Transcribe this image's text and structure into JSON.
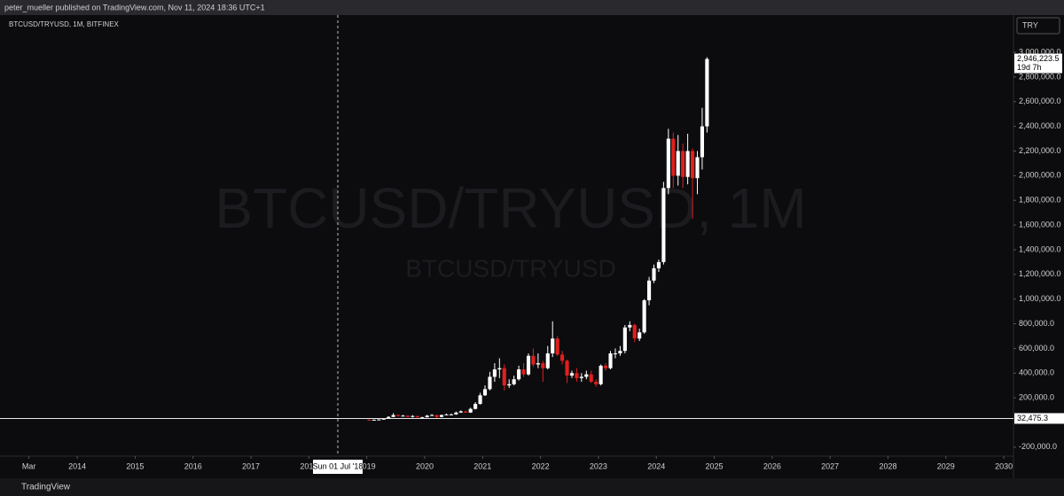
{
  "header": "peter_mueller published on TradingView.com, Nov 11, 2024 18:36 UTC+1",
  "footer": "TradingView",
  "chart_data": {
    "type": "candlestick",
    "symbol": "BTCUSD/TRYUSD, 1M, BITFINEX",
    "watermark": "BTCUSD/TRYUSD, 1M",
    "watermark_sub": "BTCUSD/TRYUSD",
    "currency_button": "TRY",
    "up_color": "#ffffff",
    "down_color": "#e0201d",
    "x": [
      "2019-01",
      "2019-02",
      "2019-03",
      "2019-04",
      "2019-05",
      "2019-06",
      "2019-07",
      "2019-08",
      "2019-09",
      "2019-10",
      "2019-11",
      "2019-12",
      "2020-01",
      "2020-02",
      "2020-03",
      "2020-04",
      "2020-05",
      "2020-06",
      "2020-07",
      "2020-08",
      "2020-09",
      "2020-10",
      "2020-11",
      "2020-12",
      "2021-01",
      "2021-02",
      "2021-03",
      "2021-04",
      "2021-05",
      "2021-06",
      "2021-07",
      "2021-08",
      "2021-09",
      "2021-10",
      "2021-11",
      "2021-12",
      "2022-01",
      "2022-02",
      "2022-03",
      "2022-04",
      "2022-05",
      "2022-06",
      "2022-07",
      "2022-08",
      "2022-09",
      "2022-10",
      "2022-11",
      "2022-12",
      "2023-01",
      "2023-02",
      "2023-03",
      "2023-04",
      "2023-05",
      "2023-06",
      "2023-07",
      "2023-08",
      "2023-09",
      "2023-10",
      "2023-11",
      "2023-12",
      "2024-01",
      "2024-02",
      "2024-03",
      "2024-04",
      "2024-05",
      "2024-06",
      "2024-07",
      "2024-08",
      "2024-09",
      "2024-10",
      "2024-11"
    ],
    "open": [
      22000,
      20000,
      22000,
      24000,
      30000,
      45000,
      60000,
      55000,
      55000,
      45000,
      52000,
      42000,
      42000,
      55000,
      60000,
      45000,
      60000,
      65000,
      65000,
      80000,
      90000,
      80000,
      110000,
      150000,
      220000,
      270000,
      370000,
      430000,
      440000,
      300000,
      310000,
      350000,
      430000,
      390000,
      540000,
      470000,
      480000,
      440000,
      560000,
      680000,
      550000,
      500000,
      380000,
      400000,
      360000,
      370000,
      390000,
      330000,
      310000,
      460000,
      440000,
      560000,
      560000,
      580000,
      770000,
      790000,
      680000,
      730000,
      990000,
      1150000,
      1250000,
      1300000,
      1900000,
      2300000,
      2000000,
      2200000,
      1990000,
      2200000,
      1980000,
      2150000,
      2400000
    ],
    "high": [
      25000,
      24000,
      26000,
      34000,
      50000,
      75000,
      65000,
      62000,
      58000,
      60000,
      55000,
      46000,
      62000,
      68000,
      62000,
      64000,
      72000,
      72000,
      88000,
      98000,
      95000,
      120000,
      165000,
      240000,
      300000,
      410000,
      480000,
      520000,
      470000,
      350000,
      380000,
      460000,
      480000,
      560000,
      600000,
      560000,
      500000,
      620000,
      820000,
      700000,
      580000,
      510000,
      420000,
      440000,
      400000,
      420000,
      420000,
      350000,
      470000,
      480000,
      580000,
      600000,
      620000,
      790000,
      820000,
      800000,
      760000,
      1000000,
      1180000,
      1280000,
      1320000,
      1950000,
      2380000,
      2350000,
      2330000,
      2260000,
      2340000,
      2220000,
      2200000,
      2550000,
      2960000
    ],
    "low": [
      18000,
      19000,
      21000,
      23000,
      29000,
      44000,
      48000,
      50000,
      42000,
      40000,
      40000,
      38000,
      40000,
      52000,
      35000,
      42000,
      58000,
      60000,
      62000,
      78000,
      78000,
      78000,
      105000,
      145000,
      215000,
      260000,
      330000,
      360000,
      260000,
      280000,
      300000,
      340000,
      370000,
      380000,
      450000,
      440000,
      330000,
      430000,
      530000,
      540000,
      470000,
      320000,
      360000,
      330000,
      330000,
      350000,
      320000,
      290000,
      300000,
      420000,
      430000,
      520000,
      540000,
      560000,
      740000,
      650000,
      660000,
      720000,
      950000,
      1130000,
      1220000,
      1280000,
      1850000,
      1900000,
      1920000,
      1900000,
      1930000,
      1650000,
      1850000,
      2050000,
      2350000
    ],
    "close": [
      20000,
      22000,
      24000,
      30000,
      45000,
      60000,
      55000,
      55000,
      45000,
      52000,
      42000,
      42000,
      55000,
      60000,
      45000,
      60000,
      65000,
      65000,
      80000,
      90000,
      80000,
      110000,
      150000,
      220000,
      270000,
      370000,
      430000,
      440000,
      300000,
      310000,
      350000,
      430000,
      390000,
      540000,
      470000,
      480000,
      440000,
      560000,
      680000,
      550000,
      500000,
      380000,
      400000,
      360000,
      370000,
      390000,
      330000,
      310000,
      460000,
      440000,
      560000,
      560000,
      580000,
      770000,
      790000,
      680000,
      730000,
      990000,
      1150000,
      1250000,
      1300000,
      1900000,
      2300000,
      2000000,
      2200000,
      1990000,
      2200000,
      1980000,
      2150000,
      2400000,
      2946223.5
    ],
    "xlim": [
      "2012-09",
      "2030-03"
    ],
    "xticks": [
      {
        "value": "2013-03",
        "label": "Mar"
      },
      {
        "value": "2014-01",
        "label": "2014"
      },
      {
        "value": "2015-01",
        "label": "2015"
      },
      {
        "value": "2016-01",
        "label": "2016"
      },
      {
        "value": "2017-01",
        "label": "2017"
      },
      {
        "value": "2018-01",
        "label": "2018"
      },
      {
        "value": "2019-01",
        "label": "2019"
      },
      {
        "value": "2020-01",
        "label": "2020"
      },
      {
        "value": "2021-01",
        "label": "2021"
      },
      {
        "value": "2022-01",
        "label": "2022"
      },
      {
        "value": "2023-01",
        "label": "2023"
      },
      {
        "value": "2024-01",
        "label": "2024"
      },
      {
        "value": "2025-01",
        "label": "2025"
      },
      {
        "value": "2026-01",
        "label": "2026"
      },
      {
        "value": "2027-01",
        "label": "2027"
      },
      {
        "value": "2028-01",
        "label": "2028"
      },
      {
        "value": "2029-01",
        "label": "2029"
      },
      {
        "value": "2030-01",
        "label": "2030"
      }
    ],
    "ylim": [
      -273000,
      3302000
    ],
    "yticks": [
      {
        "value": -200000,
        "label": "-200,000.0"
      },
      {
        "value": 200000,
        "label": "200,000.0"
      },
      {
        "value": 400000,
        "label": "400,000.0"
      },
      {
        "value": 600000,
        "label": "600,000.0"
      },
      {
        "value": 800000,
        "label": "800,000.0"
      },
      {
        "value": 1000000,
        "label": "1,000,000.0"
      },
      {
        "value": 1200000,
        "label": "1,200,000.0"
      },
      {
        "value": 1400000,
        "label": "1,400,000.0"
      },
      {
        "value": 1600000,
        "label": "1,600,000.0"
      },
      {
        "value": 1800000,
        "label": "1,800,000.0"
      },
      {
        "value": 2000000,
        "label": "2,000,000.0"
      },
      {
        "value": 2200000,
        "label": "2,200,000.0"
      },
      {
        "value": 2400000,
        "label": "2,400,000.0"
      },
      {
        "value": 2600000,
        "label": "2,600,000.0"
      },
      {
        "value": 2800000,
        "label": "2,800,000.0"
      },
      {
        "value": 3000000,
        "label": "3,000,000.0"
      }
    ],
    "price_line": {
      "value": 32475.3,
      "label": "32,475.3"
    },
    "last_price": {
      "value": 2946223.5,
      "label": "2,946,223.5",
      "countdown": "19d 7h"
    },
    "crosshair": {
      "value": "2018-07",
      "label": "Sun 01 Jul '18"
    }
  }
}
